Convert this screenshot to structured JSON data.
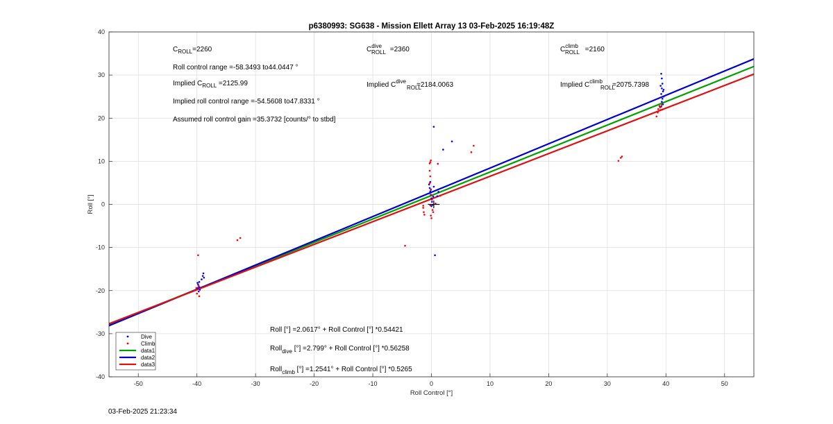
{
  "footer": {
    "timestamp": "03-Feb-2025 21:23:34"
  },
  "chart_data": {
    "type": "scatter",
    "title": "p6380993: SG638 - Mission Ellett Array 13 03-Feb-2025 16:19:48Z",
    "xlabel": "Roll Control [°]",
    "ylabel": "Roll [°]",
    "xlim": [
      -55,
      55
    ],
    "ylim": [
      -40,
      40
    ],
    "xticks": [
      -50,
      -40,
      -30,
      -20,
      -10,
      0,
      10,
      20,
      30,
      40,
      50
    ],
    "yticks": [
      -40,
      -30,
      -20,
      -10,
      0,
      10,
      20,
      30,
      40
    ],
    "grid": true,
    "legend_position": "bottom-left",
    "series": [
      {
        "name": "Dive",
        "kind": "points",
        "color": "#0000ff",
        "points": [
          [
            -39.9,
            -18.2
          ],
          [
            -39.8,
            -18.6
          ],
          [
            -39.7,
            -19.0
          ],
          [
            -39.6,
            -18.0
          ],
          [
            -39.9,
            -19.4
          ],
          [
            -39.5,
            -19.8
          ],
          [
            -39.7,
            -20.2
          ],
          [
            -38.9,
            -16.0
          ],
          [
            -39.0,
            -16.6
          ],
          [
            -39.2,
            -17.4
          ],
          [
            -38.8,
            -17.0
          ],
          [
            -39.6,
            -19.2
          ],
          [
            -0.4,
            4.6
          ],
          [
            -0.3,
            3.8
          ],
          [
            -0.2,
            3.0
          ],
          [
            -0.1,
            2.2
          ],
          [
            0.0,
            1.4
          ],
          [
            0.1,
            0.6
          ],
          [
            0.2,
            -0.1
          ],
          [
            -0.2,
            5.2
          ],
          [
            -0.3,
            2.6
          ],
          [
            0.3,
            1.8
          ],
          [
            0.0,
            -0.4
          ],
          [
            0.4,
            4.1
          ],
          [
            -0.1,
            3.4
          ],
          [
            0.4,
            18.0
          ],
          [
            2.0,
            12.7
          ],
          [
            3.5,
            14.6
          ],
          [
            0.6,
            -11.8
          ],
          [
            1.2,
            2.9
          ],
          [
            1.0,
            1.9
          ],
          [
            39.2,
            30.3
          ],
          [
            39.3,
            29.2
          ],
          [
            39.4,
            28.0
          ],
          [
            39.3,
            26.9
          ],
          [
            39.5,
            26.2
          ],
          [
            39.2,
            25.6
          ],
          [
            39.6,
            25.0
          ],
          [
            39.4,
            24.5
          ],
          [
            39.3,
            23.8
          ],
          [
            39.5,
            23.2
          ],
          [
            39.2,
            22.7
          ],
          [
            39.6,
            26.6
          ],
          [
            39.1,
            27.5
          ]
        ]
      },
      {
        "name": "Climb",
        "kind": "points",
        "color": "#ff0000",
        "points": [
          [
            -39.8,
            -11.8
          ],
          [
            -33.1,
            -8.3
          ],
          [
            -32.6,
            -7.8
          ],
          [
            -40.0,
            -20.7
          ],
          [
            -39.6,
            -21.3
          ],
          [
            -40.1,
            -19.4
          ],
          [
            -39.7,
            -18.9
          ],
          [
            -1.4,
            -0.8
          ],
          [
            -1.3,
            -1.8
          ],
          [
            -1.2,
            -2.4
          ],
          [
            -1.4,
            -0.3
          ],
          [
            -0.2,
            9.8
          ],
          [
            -0.1,
            10.2
          ],
          [
            -0.3,
            9.5
          ],
          [
            -0.3,
            7.8
          ],
          [
            -0.2,
            6.5
          ],
          [
            -0.3,
            4.9
          ],
          [
            -0.1,
            3.5
          ],
          [
            0.0,
            2.2
          ],
          [
            0.1,
            1.1
          ],
          [
            -0.2,
            -0.2
          ],
          [
            0.2,
            -1.3
          ],
          [
            -0.1,
            -2.6
          ],
          [
            0.0,
            -3.2
          ],
          [
            0.3,
            -1.8
          ],
          [
            -4.5,
            -9.6
          ],
          [
            1.1,
            9.4
          ],
          [
            6.8,
            12.1
          ],
          [
            7.2,
            13.6
          ],
          [
            1.5,
            2.0
          ],
          [
            0.7,
            0.2
          ],
          [
            31.9,
            10.1
          ],
          [
            32.3,
            10.8
          ],
          [
            32.5,
            11.1
          ],
          [
            38.4,
            20.4
          ],
          [
            38.6,
            21.3
          ],
          [
            38.7,
            22.1
          ],
          [
            39.0,
            22.5
          ],
          [
            39.3,
            23.1
          ],
          [
            39.1,
            21.9
          ],
          [
            38.9,
            22.8
          ],
          [
            39.4,
            22.0
          ]
        ]
      },
      {
        "name": "data1",
        "kind": "line",
        "color": "#00a000",
        "intercept": 2.0617,
        "slope": 0.54421
      },
      {
        "name": "data2",
        "kind": "line",
        "color": "#0000cc",
        "intercept": 2.799,
        "slope": 0.56258
      },
      {
        "name": "data3",
        "kind": "line",
        "color": "#dd1111",
        "intercept": 1.2541,
        "slope": 0.5265
      }
    ],
    "annotations": {
      "croll": {
        "main": "C",
        "sub": "ROLL",
        "rest": "=2260"
      },
      "croll_dive": {
        "main": "C",
        "sup": "dive",
        "sub": "ROLL",
        "rest": " =2360"
      },
      "croll_climb": {
        "main": "C",
        "sup": "climb",
        "sub": "ROLL",
        "rest": " =2160"
      },
      "range": "Roll control range =-58.3493 to44.0447 °",
      "implied": {
        "pre": "Implied C",
        "sub": "ROLL",
        "rest": " =2125.99"
      },
      "implied_dive": {
        "pre": "Implied C",
        "sup": "dive",
        "sub": "ROLL",
        "rest": "=2184.0063"
      },
      "implied_climb": {
        "pre": "Implied C",
        "sup": "climb",
        "sub": "ROLL",
        "rest": "=2075.7398"
      },
      "implied_range": "Implied roll control range =-54.5608 to47.8331 °",
      "gain": "Assumed roll control gain =35.3732 [counts/° to stbd]",
      "fit": {
        "main": "Roll",
        "rest": " [°] =2.0617° + Roll Control [°] *0.54421"
      },
      "fit_dive": {
        "main": "Roll",
        "sub": "dive",
        "rest": " [°] =2.799° + Roll Control [°] *0.56258"
      },
      "fit_climb": {
        "main": "Roll",
        "sub": "climb",
        "rest": " [°] =1.2541° + Roll Control [°] *0.5265"
      }
    }
  }
}
